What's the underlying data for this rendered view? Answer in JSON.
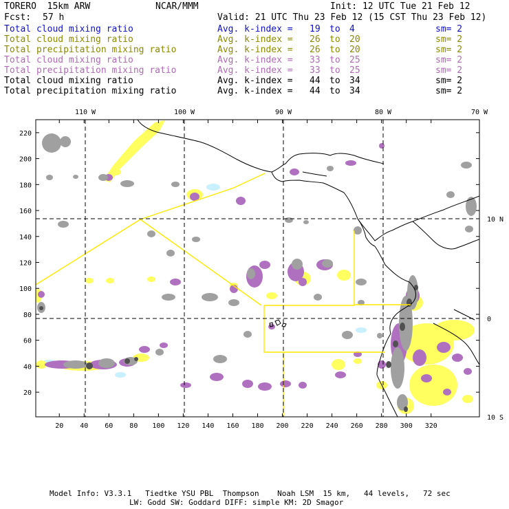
{
  "header": {
    "model": "TORERO  15km ARW",
    "org": "NCAR/MMM",
    "init": "Init: 12 UTC Tue 21 Feb 12",
    "fcst_label": "Fcst:",
    "fcst_value": "57 h",
    "valid": "Valid: 21 UTC Thu 23 Feb 12 (15 CST Thu 23 Feb 12)"
  },
  "legend": [
    {
      "field": "Total cloud mixing ratio",
      "index": "Avg. k-index =",
      "from": "19",
      "to_word": "to",
      "to": "4",
      "sm": "sm= 2",
      "color": "#1010c8"
    },
    {
      "field": "Total cloud mixing ratio",
      "index": "Avg. k-index =",
      "from": "26",
      "to_word": "to",
      "to": "20",
      "sm": "sm= 2",
      "color": "#8a8a00"
    },
    {
      "field": "Total precipitation mixing ratio",
      "index": "Avg. k-index =",
      "from": "26",
      "to_word": "to",
      "to": "20",
      "sm": "sm= 2",
      "color": "#8a8a00"
    },
    {
      "field": "Total cloud mixing ratio",
      "index": "Avg. k-index =",
      "from": "33",
      "to_word": "to",
      "to": "25",
      "sm": "sm= 2",
      "color": "#b06ab8"
    },
    {
      "field": "Total precipitation mixing ratio",
      "index": "Avg. k-index =",
      "from": "33",
      "to_word": "to",
      "to": "25",
      "sm": "sm= 2",
      "color": "#b06ab8"
    },
    {
      "field": "Total cloud mixing ratio",
      "index": "Avg. k-index =",
      "from": "44",
      "to_word": "to",
      "to": "34",
      "sm": "sm= 2",
      "color": "#000000"
    },
    {
      "field": "Total precipitation mixing ratio",
      "index": "Avg. k-index =",
      "from": "44",
      "to_word": "to",
      "to": "34",
      "sm": "sm= 2",
      "color": "#000000"
    }
  ],
  "map": {
    "lon_labels": [
      "110 W",
      "100 W",
      "90 W",
      "80 W",
      "70 W"
    ],
    "lat_labels": [
      "10 N",
      "0",
      "10 S"
    ],
    "x_ticks": [
      "20",
      "40",
      "60",
      "80",
      "100",
      "120",
      "140",
      "160",
      "180",
      "200",
      "220",
      "240",
      "260",
      "280",
      "300",
      "320"
    ],
    "y_ticks": [
      "220",
      "200",
      "180",
      "160",
      "140",
      "120",
      "100",
      "80",
      "60",
      "40",
      "20"
    ],
    "colors": {
      "cloud_gray": "#a0a0a0",
      "cloud_dark": "#505050",
      "precip_purple": "#b070c0",
      "precip_yellow": "#ffff60",
      "light_blue": "#c8f0ff",
      "boundary_yellow": "#ffe800",
      "coastline": "#000000"
    }
  },
  "footer": {
    "line1": "Model Info: V3.3.1   Tiedtke YSU PBL  Thompson    Noah LSM  15 km,   44 levels,   72 sec",
    "line2": "LW: Godd SW: Goddard DIFF: simple KM: 2D Smagor"
  }
}
